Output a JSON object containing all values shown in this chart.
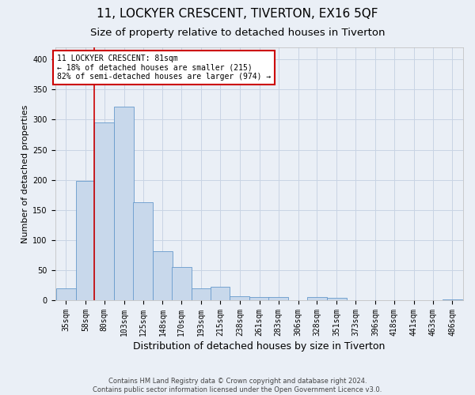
{
  "title": "11, LOCKYER CRESCENT, TIVERTON, EX16 5QF",
  "subtitle": "Size of property relative to detached houses in Tiverton",
  "xlabel": "Distribution of detached houses by size in Tiverton",
  "ylabel": "Number of detached properties",
  "footer_line1": "Contains HM Land Registry data © Crown copyright and database right 2024.",
  "footer_line2": "Contains public sector information licensed under the Open Government Licence v3.0.",
  "bar_color": "#c8d8eb",
  "bar_edge_color": "#6699cc",
  "grid_color": "#c8d4e4",
  "background_color": "#eaeff6",
  "plot_bg_color": "#eaeff6",
  "annotation_line1": "11 LOCKYER CRESCENT: 81sqm",
  "annotation_line2": "← 18% of detached houses are smaller (215)",
  "annotation_line3": "82% of semi-detached houses are larger (974) →",
  "annotation_box_color": "white",
  "annotation_box_edge": "#cc0000",
  "vline_color": "#cc0000",
  "vline_x_idx": 2,
  "categories": [
    "35sqm",
    "58sqm",
    "80sqm",
    "103sqm",
    "125sqm",
    "148sqm",
    "170sqm",
    "193sqm",
    "215sqm",
    "238sqm",
    "261sqm",
    "283sqm",
    "306sqm",
    "328sqm",
    "351sqm",
    "373sqm",
    "396sqm",
    "418sqm",
    "441sqm",
    "463sqm",
    "486sqm"
  ],
  "bin_starts": [
    35,
    58,
    80,
    103,
    125,
    148,
    170,
    193,
    215,
    238,
    261,
    283,
    306,
    328,
    351,
    373,
    396,
    418,
    441,
    463,
    486
  ],
  "bin_width": 23,
  "values": [
    20,
    198,
    295,
    322,
    163,
    82,
    55,
    20,
    22,
    7,
    6,
    5,
    0,
    5,
    4,
    0,
    0,
    0,
    0,
    0,
    2
  ],
  "ylim": [
    0,
    420
  ],
  "yticks": [
    0,
    50,
    100,
    150,
    200,
    250,
    300,
    350,
    400
  ],
  "vline_xval": 80,
  "title_fontsize": 11,
  "subtitle_fontsize": 9.5,
  "xlabel_fontsize": 9,
  "ylabel_fontsize": 8,
  "tick_fontsize": 7,
  "annot_fontsize": 7,
  "footer_fontsize": 6
}
